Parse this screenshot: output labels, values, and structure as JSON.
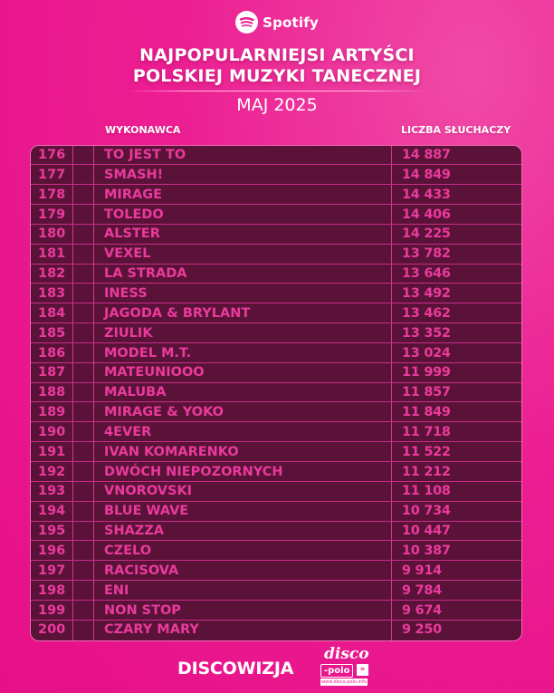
{
  "header": {
    "logo_text": "Spotify",
    "title_line1": "NAJPOPULARNIEJSI ARTYŚCI",
    "title_line2": "POLSKIEJ MUZYKI TANECZNEJ",
    "subtitle": "MAJ 2025"
  },
  "table": {
    "columns": {
      "artist": "WYKONAWCA",
      "listeners": "LICZBA SŁUCHACZY"
    },
    "rows": [
      {
        "rank": "176",
        "artist": "TO JEST TO",
        "listeners": "14 887"
      },
      {
        "rank": "177",
        "artist": "SMASH!",
        "listeners": "14 849"
      },
      {
        "rank": "178",
        "artist": "MIRAGE",
        "listeners": "14 433"
      },
      {
        "rank": "179",
        "artist": "TOLEDO",
        "listeners": "14 406"
      },
      {
        "rank": "180",
        "artist": "ALSTER",
        "listeners": "14 225"
      },
      {
        "rank": "181",
        "artist": "VEXEL",
        "listeners": "13 782"
      },
      {
        "rank": "182",
        "artist": "LA STRADA",
        "listeners": "13 646"
      },
      {
        "rank": "183",
        "artist": "INESS",
        "listeners": "13 492"
      },
      {
        "rank": "184",
        "artist": "JAGODA & BRYLANT",
        "listeners": "13 462"
      },
      {
        "rank": "185",
        "artist": "ZIULIK",
        "listeners": "13 352"
      },
      {
        "rank": "186",
        "artist": "MODEL M.T.",
        "listeners": "13 024"
      },
      {
        "rank": "187",
        "artist": "MATEUNIOOO",
        "listeners": "11 999"
      },
      {
        "rank": "188",
        "artist": "MALUBA",
        "listeners": "11 857"
      },
      {
        "rank": "189",
        "artist": "MIRAGE & YOKO",
        "listeners": "11 849"
      },
      {
        "rank": "190",
        "artist": "4EVER",
        "listeners": "11 718"
      },
      {
        "rank": "191",
        "artist": "IVAN KOMARENKO",
        "listeners": "11 522"
      },
      {
        "rank": "192",
        "artist": "DWÓCH NIEPOZORNYCH",
        "listeners": "11 212"
      },
      {
        "rank": "193",
        "artist": "VNOROVSKI",
        "listeners": "11 108"
      },
      {
        "rank": "194",
        "artist": "BLUE WAVE",
        "listeners": "10 734"
      },
      {
        "rank": "195",
        "artist": "SHAZZA",
        "listeners": "10 447"
      },
      {
        "rank": "196",
        "artist": "CZELO",
        "listeners": "10 387"
      },
      {
        "rank": "197",
        "artist": "RACISOVA",
        "listeners": "9 914"
      },
      {
        "rank": "198",
        "artist": "ENI",
        "listeners": "9 784"
      },
      {
        "rank": "199",
        "artist": "NON STOP",
        "listeners": "9 674"
      },
      {
        "rank": "200",
        "artist": "CZARY MARY",
        "listeners": "9 250"
      }
    ]
  },
  "footer": {
    "brand": "DISCOWIZJA",
    "partner_logo_word": "disco",
    "partner_logo_polo": "-polo",
    "partner_logo_arrows": "»",
    "partner_logo_url": "www.disco-polo.info"
  },
  "colors": {
    "background": "#ec1e92",
    "table_fill": "#5b1239",
    "table_text": "#ea3a9c",
    "grid_line": "#c92c86",
    "header_text": "#ffffff"
  }
}
